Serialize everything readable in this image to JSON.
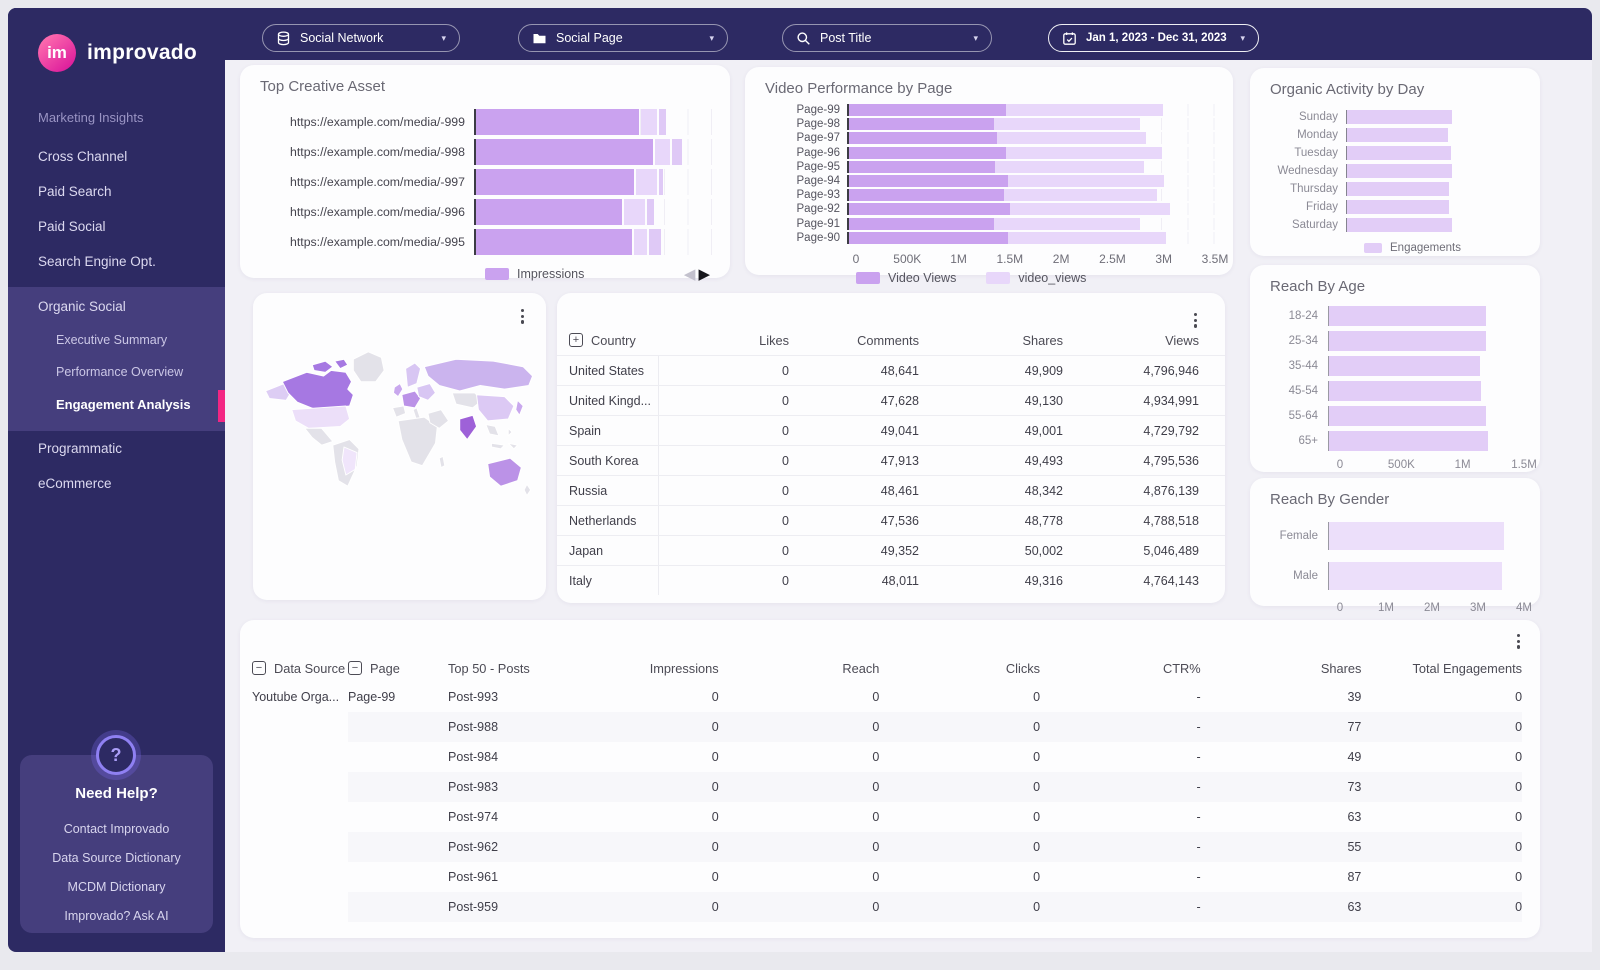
{
  "icons": {
    "chevron_glyph": "▾",
    "prev_glyph": "◀",
    "next_glyph": "▶",
    "help_glyph": "?",
    "expand_glyph": "+",
    "collapse_glyph": "−"
  },
  "colors": {
    "navy": "#2d2a63",
    "section_bg": "#453e7d",
    "accent_pink": "#f32683",
    "bar_main": "#caa2ef",
    "bar_light": "#e8d7fa",
    "bar_light2": "#dfc9f6",
    "bar_pale": "#e2cdf7",
    "bar_gender": "#ecdffa",
    "creative_segments": [
      "#caa2ef",
      "#e8d7fa",
      "#dfc9f6"
    ],
    "map_palette": [
      "#e3e2e9",
      "#a678e2",
      "#cbb4ee",
      "#dcc9f4",
      "#ecdff9",
      "#bb92e7",
      "#c9a8ee",
      "#9e61d8",
      "#f0e5fb"
    ]
  },
  "topbar": {
    "filters": [
      {
        "icon": "database-icon",
        "label": "Social Network"
      },
      {
        "icon": "folder-icon",
        "label": "Social Page"
      },
      {
        "icon": "search-icon",
        "label": "Post Title"
      },
      {
        "icon": "calendar-icon",
        "label": "Jan 1, 2023 - Dec 31, 2023",
        "emphasis": true
      }
    ]
  },
  "sidebar": {
    "brand": {
      "logo_text": "im",
      "name": "improvado"
    },
    "items": [
      {
        "type": "section",
        "label": "Marketing Insights"
      },
      {
        "type": "item",
        "label": "Cross Channel"
      },
      {
        "type": "item",
        "label": "Paid Search"
      },
      {
        "type": "item",
        "label": "Paid Social"
      },
      {
        "type": "item",
        "label": "Search Engine Opt."
      },
      {
        "type": "group",
        "label": "Organic Social",
        "children": [
          {
            "label": "Executive Summary",
            "active": false
          },
          {
            "label": "Performance Overview",
            "active": false
          },
          {
            "label": "Engagement Analysis",
            "active": true
          }
        ]
      },
      {
        "type": "item",
        "label": "Programmatic"
      },
      {
        "type": "item",
        "label": "eCommerce"
      }
    ],
    "help": {
      "icon_glyph": "?",
      "title": "Need Help?",
      "links": [
        "Contact Improvado",
        "Data Source Dictionary",
        "MCDM Dictionary",
        "Improvado? Ask AI"
      ]
    }
  },
  "cards": {
    "creative": {
      "title": "Top Creative Asset",
      "legend": "Impressions",
      "rows": [
        {
          "url": "https://example.com/media/-999",
          "segments": [
            69,
            6.7,
            3
          ]
        },
        {
          "url": "https://example.com/media/-998",
          "segments": [
            75,
            6.3,
            4.2
          ]
        },
        {
          "url": "https://example.com/media/-997",
          "segments": [
            67,
            9,
            1.5
          ]
        },
        {
          "url": "https://example.com/media/-996",
          "segments": [
            62,
            8.8,
            3
          ]
        },
        {
          "url": "https://example.com/media/-995",
          "segments": [
            66,
            5.5,
            5
          ]
        }
      ]
    },
    "video": {
      "title": "Video Performance by Page",
      "categories": [
        "Page-99",
        "Page-98",
        "Page-97",
        "Page-96",
        "Page-95",
        "Page-94",
        "Page-93",
        "Page-92",
        "Page-91",
        "Page-90"
      ],
      "series": [
        {
          "name": "Video Views",
          "values": [
            1.5,
            1.39,
            1.42,
            1.5,
            1.4,
            1.52,
            1.48,
            1.54,
            1.39,
            1.52
          ]
        },
        {
          "name": "video_views",
          "values": [
            1.5,
            1.39,
            1.42,
            1.49,
            1.42,
            1.49,
            1.47,
            1.53,
            1.39,
            1.51
          ]
        }
      ],
      "max": 3.5,
      "ticks": [
        "0",
        "500K",
        "1M",
        "1.5M",
        "2M",
        "2.5M",
        "3M",
        "3.5M"
      ]
    },
    "activity": {
      "title": "Organic Activity by Day",
      "legend": "Engagements",
      "categories": [
        "Sunday",
        "Monday",
        "Tuesday",
        "Wednesday",
        "Thursday",
        "Friday",
        "Saturday"
      ],
      "values": [
        1.0,
        0.96,
        0.99,
        1.0,
        0.975,
        0.975,
        1.0
      ]
    },
    "age": {
      "title": "Reach By Age",
      "categories": [
        "18-24",
        "25-34",
        "35-44",
        "45-54",
        "55-64",
        "65+"
      ],
      "values": [
        1.21,
        1.21,
        1.16,
        1.17,
        1.21,
        1.22
      ],
      "max": 1.5,
      "ticks": [
        "0",
        "500K",
        "1M",
        "1.5M"
      ]
    },
    "gender": {
      "title": "Reach By Gender",
      "categories": [
        "Female",
        "Male"
      ],
      "values": [
        3.58,
        3.55
      ],
      "max": 4,
      "ticks": [
        "0",
        "1M",
        "2M",
        "3M",
        "4M"
      ]
    },
    "country": {
      "headers": [
        "Country",
        "Likes",
        "Comments",
        "Shares",
        "Views"
      ],
      "rows": [
        [
          "United States",
          "0",
          "48,641",
          "49,909",
          "4,796,946"
        ],
        [
          "United Kingd...",
          "0",
          "47,628",
          "49,130",
          "4,934,991"
        ],
        [
          "Spain",
          "0",
          "49,041",
          "49,001",
          "4,729,792"
        ],
        [
          "South Korea",
          "0",
          "47,913",
          "49,493",
          "4,795,536"
        ],
        [
          "Russia",
          "0",
          "48,461",
          "48,342",
          "4,876,139"
        ],
        [
          "Netherlands",
          "0",
          "47,536",
          "48,778",
          "4,788,518"
        ],
        [
          "Japan",
          "0",
          "49,352",
          "50,002",
          "5,046,489"
        ],
        [
          "Italy",
          "0",
          "48,011",
          "49,316",
          "4,764,143"
        ]
      ]
    },
    "posts": {
      "headers": [
        "Data Source",
        "Page",
        "Top 50 - Posts",
        "Impressions",
        "Reach",
        "Clicks",
        "CTR%",
        "Shares",
        "Total Engagements"
      ],
      "data_source": "Youtube Orga...",
      "page": "Page-99",
      "rows": [
        {
          "post": "Post-993",
          "impressions": "0",
          "reach": "0",
          "clicks": "0",
          "ctr": "-",
          "shares": "39",
          "total": "0"
        },
        {
          "post": "Post-988",
          "impressions": "0",
          "reach": "0",
          "clicks": "0",
          "ctr": "-",
          "shares": "77",
          "total": "0"
        },
        {
          "post": "Post-984",
          "impressions": "0",
          "reach": "0",
          "clicks": "0",
          "ctr": "-",
          "shares": "49",
          "total": "0"
        },
        {
          "post": "Post-983",
          "impressions": "0",
          "reach": "0",
          "clicks": "0",
          "ctr": "-",
          "shares": "73",
          "total": "0"
        },
        {
          "post": "Post-974",
          "impressions": "0",
          "reach": "0",
          "clicks": "0",
          "ctr": "-",
          "shares": "63",
          "total": "0"
        },
        {
          "post": "Post-962",
          "impressions": "0",
          "reach": "0",
          "clicks": "0",
          "ctr": "-",
          "shares": "55",
          "total": "0"
        },
        {
          "post": "Post-961",
          "impressions": "0",
          "reach": "0",
          "clicks": "0",
          "ctr": "-",
          "shares": "87",
          "total": "0"
        },
        {
          "post": "Post-959",
          "impressions": "0",
          "reach": "0",
          "clicks": "0",
          "ctr": "-",
          "shares": "63",
          "total": "0"
        }
      ]
    }
  }
}
